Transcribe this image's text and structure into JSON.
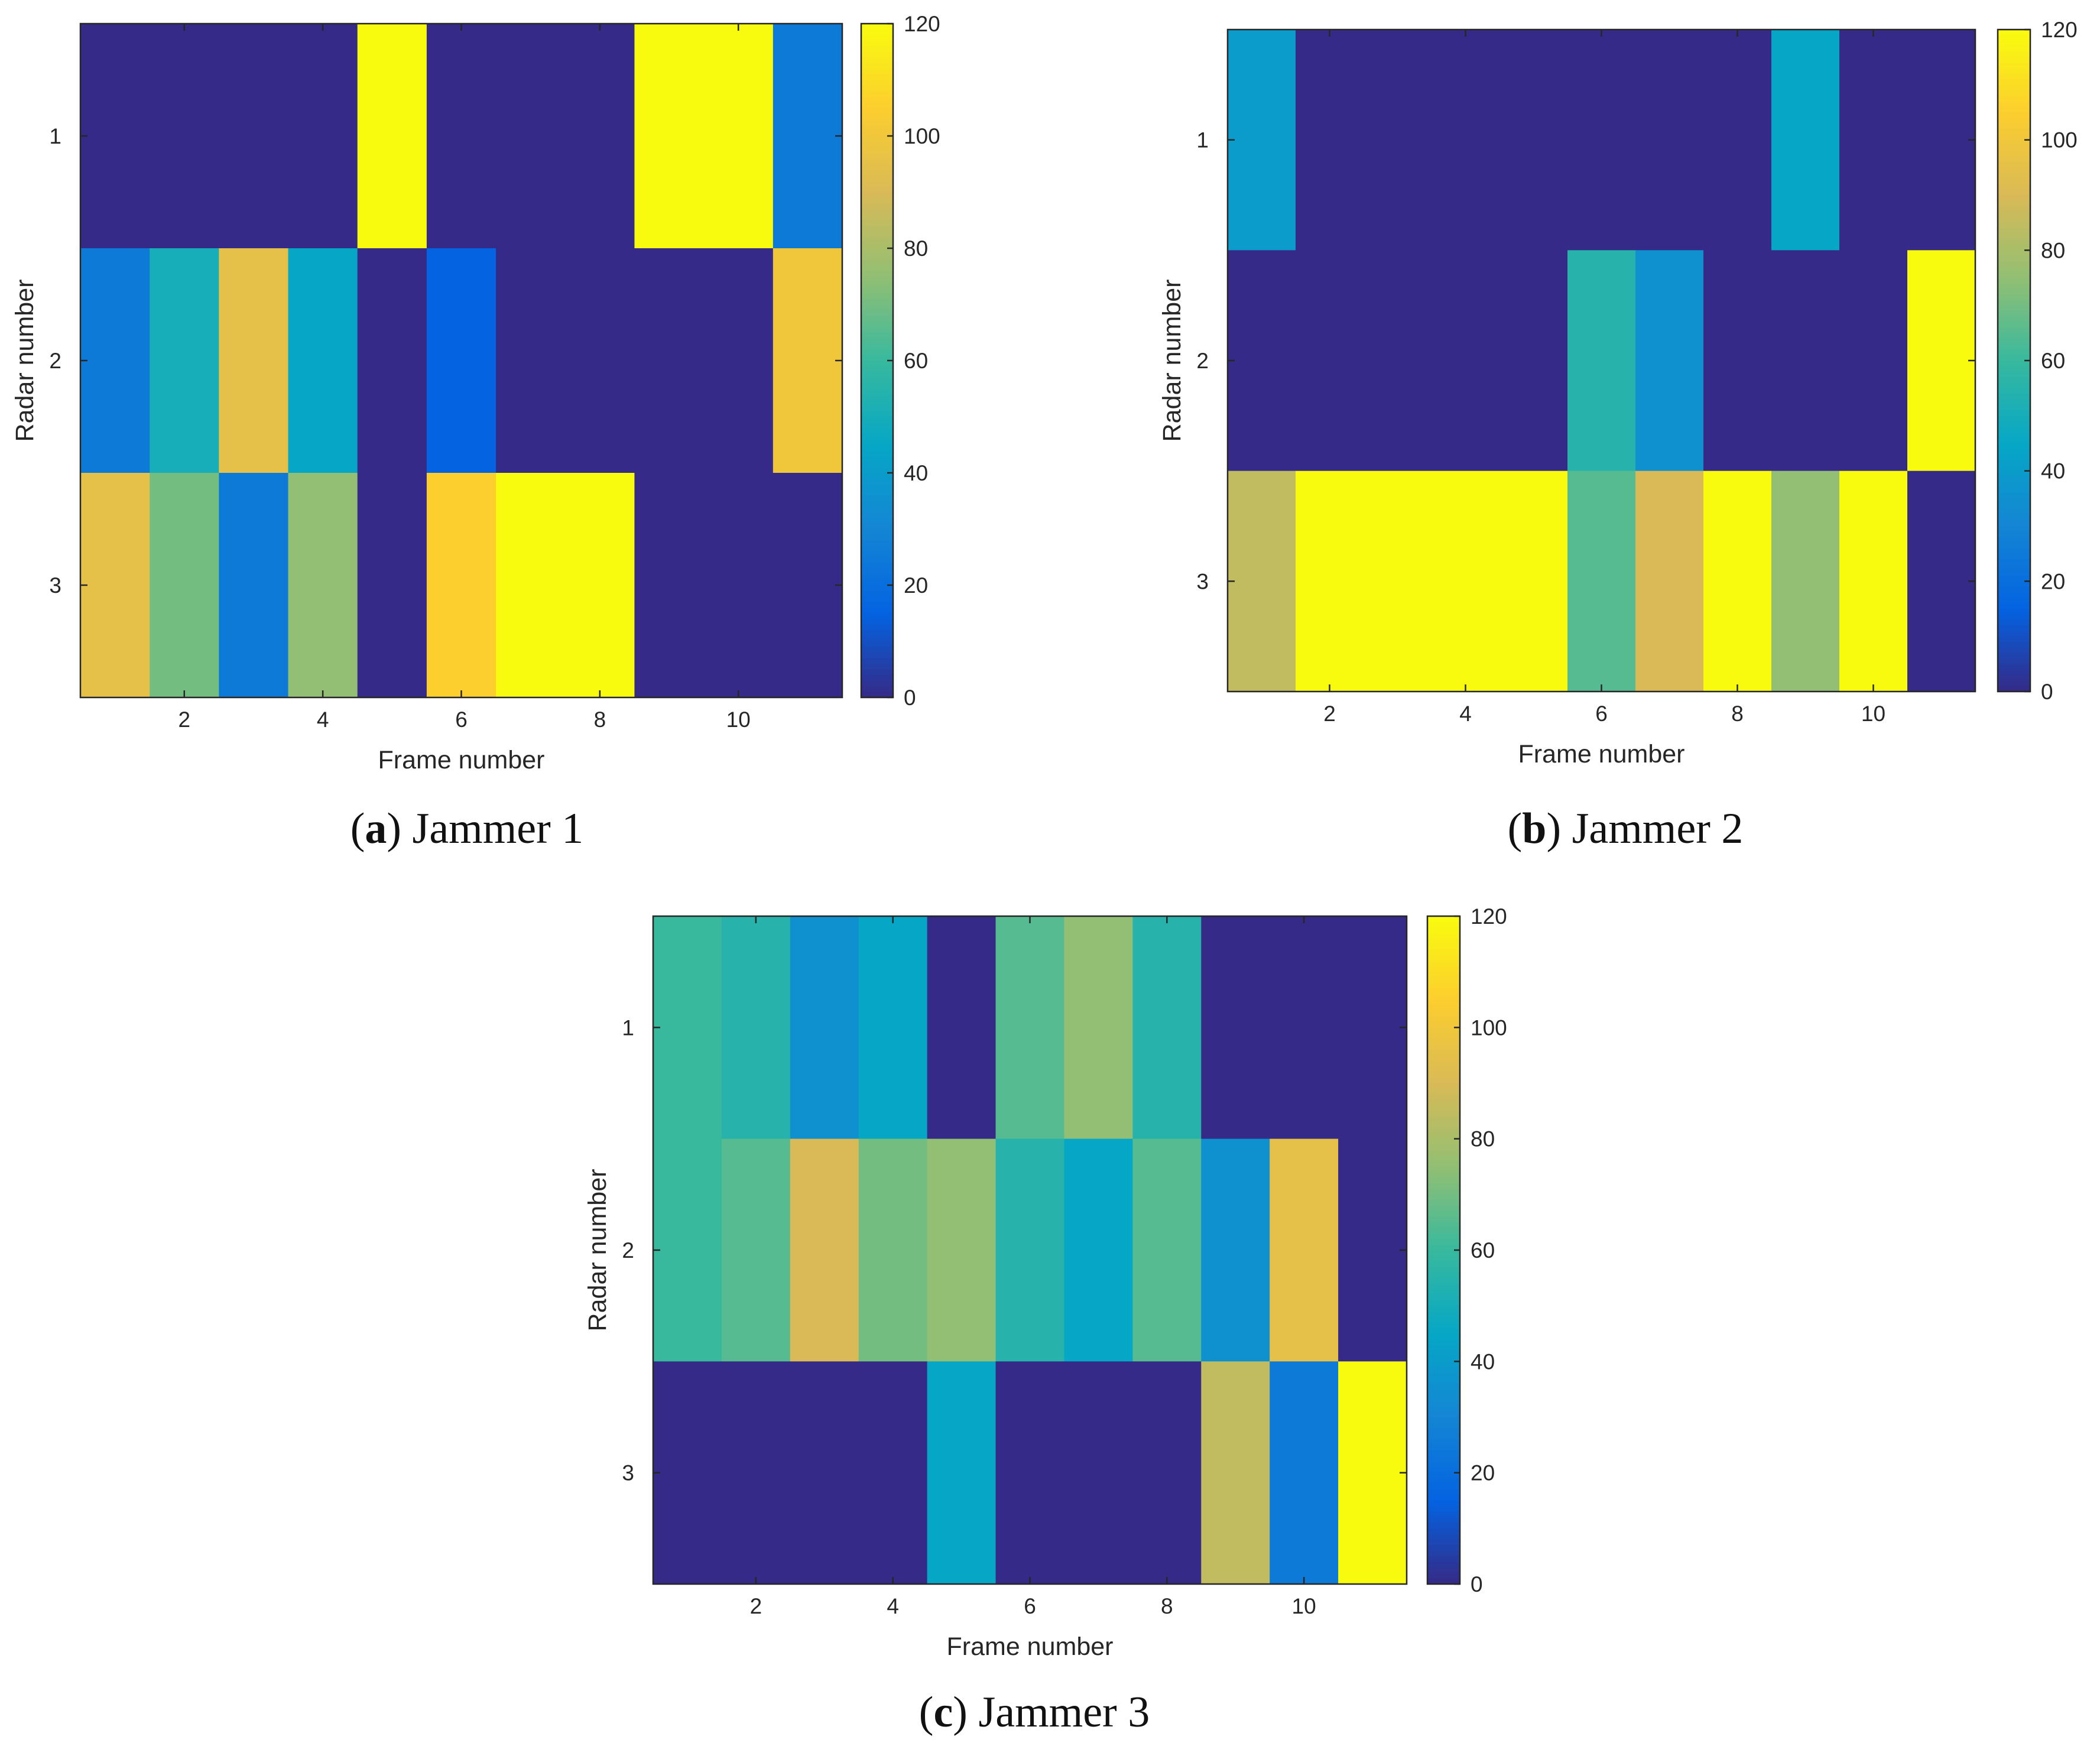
{
  "colormap": {
    "name": "parula",
    "stops": [
      "#352a87",
      "#0363e1",
      "#1485d4",
      "#06a7c6",
      "#38b99e",
      "#92bf73",
      "#d9ba56",
      "#fcce2e",
      "#f9fb0e"
    ]
  },
  "axis_color": "#262626",
  "chart_data": [
    {
      "id": "a",
      "type": "heatmap",
      "caption_letter": "a",
      "caption_text": "Jammer 1",
      "xlabel": "Frame number",
      "ylabel": "Radar number",
      "x_ticks": [
        "2",
        "4",
        "6",
        "8",
        "10"
      ],
      "y_ticks": [
        "1",
        "2",
        "3"
      ],
      "colorbar_ticks": [
        "0",
        "20",
        "40",
        "60",
        "80",
        "100",
        "120"
      ],
      "clim": [
        0,
        120
      ],
      "xlim": [
        0.5,
        11.5
      ],
      "ylim": [
        0.5,
        3.5
      ],
      "z": [
        [
          0,
          0,
          0,
          0,
          120,
          0,
          0,
          0,
          120,
          120,
          25
        ],
        [
          25,
          50,
          95,
          45,
          0,
          15,
          0,
          0,
          0,
          0,
          100
        ],
        [
          95,
          70,
          25,
          75,
          0,
          105,
          120,
          120,
          0,
          0,
          0
        ]
      ]
    },
    {
      "id": "b",
      "type": "heatmap",
      "caption_letter": "b",
      "caption_text": "Jammer 2",
      "xlabel": "Frame number",
      "ylabel": "Radar number",
      "x_ticks": [
        "2",
        "4",
        "6",
        "8",
        "10"
      ],
      "y_ticks": [
        "1",
        "2",
        "3"
      ],
      "colorbar_ticks": [
        "0",
        "20",
        "40",
        "60",
        "80",
        "100",
        "120"
      ],
      "clim": [
        0,
        120
      ],
      "xlim": [
        0.5,
        11.5
      ],
      "ylim": [
        0.5,
        3.5
      ],
      "z": [
        [
          40,
          0,
          0,
          0,
          0,
          0,
          0,
          0,
          45,
          0,
          0
        ],
        [
          0,
          0,
          0,
          0,
          0,
          55,
          35,
          0,
          0,
          0,
          120
        ],
        [
          85,
          120,
          120,
          120,
          120,
          65,
          90,
          120,
          75,
          120,
          0
        ]
      ]
    },
    {
      "id": "c",
      "type": "heatmap",
      "caption_letter": "c",
      "caption_text": "Jammer 3",
      "xlabel": "Frame number",
      "ylabel": "Radar number",
      "x_ticks": [
        "2",
        "4",
        "6",
        "8",
        "10"
      ],
      "y_ticks": [
        "1",
        "2",
        "3"
      ],
      "colorbar_ticks": [
        "0",
        "20",
        "40",
        "60",
        "80",
        "100",
        "120"
      ],
      "clim": [
        0,
        120
      ],
      "xlim": [
        0.5,
        11.5
      ],
      "ylim": [
        0.5,
        3.5
      ],
      "z": [
        [
          60,
          55,
          35,
          45,
          0,
          65,
          75,
          55,
          0,
          0,
          0
        ],
        [
          60,
          65,
          90,
          70,
          75,
          55,
          45,
          65,
          35,
          95,
          0
        ],
        [
          0,
          0,
          0,
          0,
          45,
          0,
          0,
          0,
          85,
          25,
          120
        ]
      ]
    }
  ]
}
